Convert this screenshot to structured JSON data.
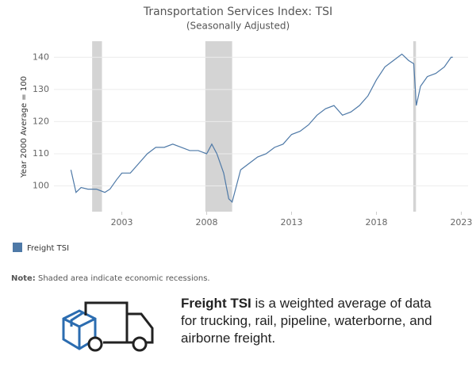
{
  "chart_data": {
    "type": "line",
    "title": "Transportation Services Index:  TSI",
    "subtitle": "(Seasonally Adjusted)",
    "y_label": "Year 2000 Average = 100",
    "x": [
      2000.0,
      2000.3,
      2000.6,
      2001.0,
      2001.5,
      2002.0,
      2002.3,
      2002.7,
      2003.0,
      2003.5,
      2004.0,
      2004.5,
      2005.0,
      2005.5,
      2006.0,
      2006.5,
      2007.0,
      2007.5,
      2008.0,
      2008.3,
      2008.6,
      2009.0,
      2009.3,
      2009.5,
      2009.8,
      2010.0,
      2010.5,
      2011.0,
      2011.5,
      2012.0,
      2012.5,
      2013.0,
      2013.5,
      2014.0,
      2014.5,
      2015.0,
      2015.5,
      2016.0,
      2016.5,
      2017.0,
      2017.5,
      2018.0,
      2018.5,
      2019.0,
      2019.5,
      2019.9,
      2020.2,
      2020.35,
      2020.6,
      2021.0,
      2021.5,
      2022.0,
      2022.4,
      2022.5
    ],
    "series": [
      {
        "name": "Freight TSI",
        "color": "#4e79a7",
        "values": [
          105,
          98,
          99.5,
          99,
          99,
          98,
          99,
          102,
          104,
          104,
          107,
          110,
          112,
          112,
          113,
          112,
          111,
          111,
          110,
          113,
          110,
          104,
          96,
          95,
          101,
          105,
          107,
          109,
          110,
          112,
          113,
          116,
          117,
          119,
          122,
          124,
          125,
          122,
          123,
          125,
          128,
          133,
          137,
          139,
          141,
          139,
          138,
          125,
          131,
          134,
          135,
          137,
          140,
          140
        ]
      }
    ],
    "recessions": [
      [
        2001.25,
        2001.83
      ],
      [
        2007.92,
        2009.5
      ],
      [
        2020.17,
        2020.33
      ]
    ],
    "recession_color": "#d4d4d4",
    "xlim": [
      1999,
      2023.4
    ],
    "xticks": [
      2003,
      2008,
      2013,
      2018,
      2023
    ],
    "ylim": [
      92,
      145
    ],
    "yticks": [
      100,
      110,
      120,
      130,
      140
    ],
    "grid": true,
    "note_label": "Note:",
    "note": "Shaded area indicate economic recessions."
  },
  "description": {
    "bold": "Freight TSI",
    "text": "is a weighted average of data for trucking, rail, pipeline, waterborne, and airborne freight."
  }
}
